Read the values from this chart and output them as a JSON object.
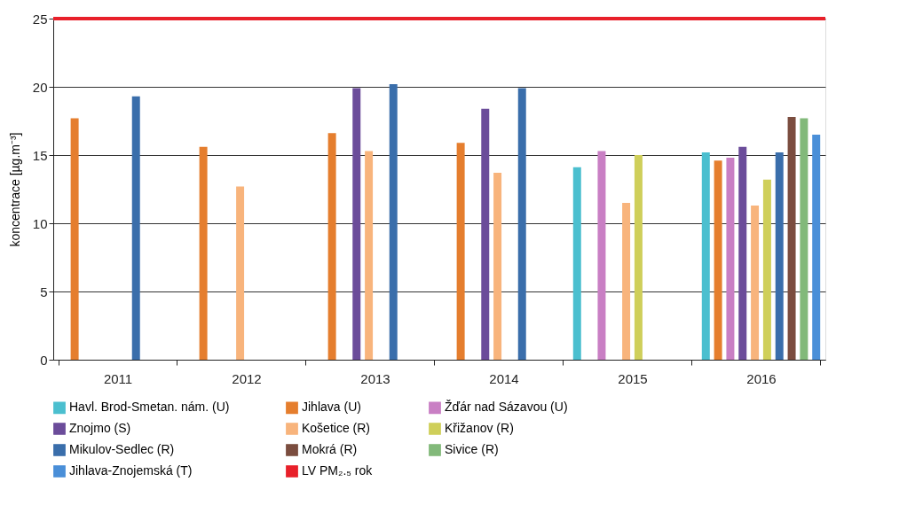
{
  "chart_data": {
    "type": "bar",
    "ylabel": "koncentrace [µg.m⁻³]",
    "categories": [
      "2011",
      "2012",
      "2013",
      "2014",
      "2015",
      "2016"
    ],
    "series": [
      {
        "name": "Havl. Brod-Smetan. nám. (U)",
        "color": "#4bbfcf",
        "values": [
          null,
          null,
          null,
          null,
          14.1,
          15.2
        ]
      },
      {
        "name": "Jihlava (U)",
        "color": "#e57e2e",
        "values": [
          17.7,
          15.6,
          16.6,
          15.9,
          null,
          14.6
        ]
      },
      {
        "name": "Žďár nad Sázavou (U)",
        "color": "#c97fc4",
        "values": [
          null,
          null,
          null,
          null,
          15.3,
          14.8
        ]
      },
      {
        "name": "Znojmo (S)",
        "color": "#6b4c9a",
        "values": [
          null,
          null,
          19.9,
          18.4,
          null,
          15.6
        ]
      },
      {
        "name": "Košetice (R)",
        "color": "#f8b47c",
        "values": [
          null,
          12.7,
          15.3,
          13.7,
          11.5,
          11.3
        ]
      },
      {
        "name": "Křižanov (R)",
        "color": "#cfcf5a",
        "values": [
          null,
          null,
          null,
          null,
          15.0,
          13.2
        ]
      },
      {
        "name": "Mikulov-Sedlec (R)",
        "color": "#3a6eab",
        "values": [
          19.3,
          null,
          20.2,
          19.9,
          null,
          15.2
        ]
      },
      {
        "name": "Mokrá (R)",
        "color": "#7b4d3f",
        "values": [
          null,
          null,
          null,
          null,
          null,
          17.8
        ]
      },
      {
        "name": "Sivice (R)",
        "color": "#82b97a",
        "values": [
          null,
          null,
          null,
          null,
          null,
          17.7
        ]
      },
      {
        "name": "Jihlava-Znojemská (T)",
        "color": "#4a8fd8",
        "values": [
          null,
          null,
          null,
          null,
          null,
          16.5
        ]
      }
    ],
    "ylim": [
      0,
      25
    ],
    "yticks": [
      0,
      5,
      10,
      15,
      20,
      25
    ],
    "grid": "y",
    "legend": "bottom",
    "ref_lines": [
      {
        "axis": "y",
        "value": 25,
        "label": "LV PM₂.₅ rok",
        "color": "#e8202a",
        "line_style": "solid"
      }
    ]
  }
}
